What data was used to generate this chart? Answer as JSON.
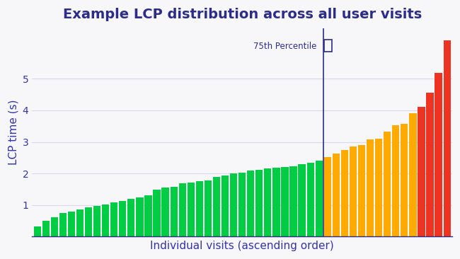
{
  "title": "Example LCP distribution across all user visits",
  "xlabel": "Individual visits (ascending order)",
  "ylabel": "LCP time (s)",
  "title_color": "#2c2c8a",
  "axis_label_color": "#3333aa",
  "text_color": "#2c2c8a",
  "background_color": "#f7f7fa",
  "bar_values": [
    0.32,
    0.5,
    0.62,
    0.75,
    0.8,
    0.85,
    0.92,
    0.98,
    1.02,
    1.08,
    1.12,
    1.2,
    1.25,
    1.3,
    1.48,
    1.55,
    1.58,
    1.68,
    1.72,
    1.75,
    1.78,
    1.88,
    1.93,
    2.0,
    2.02,
    2.1,
    2.12,
    2.15,
    2.18,
    2.2,
    2.22,
    2.3,
    2.35,
    2.4,
    2.52,
    2.62,
    2.75,
    2.85,
    2.9,
    3.08,
    3.1,
    3.32,
    3.52,
    3.58,
    3.92,
    4.1,
    4.55,
    5.18,
    6.22
  ],
  "good_threshold": 2.5,
  "needs_improvement_threshold": 4.0,
  "color_good": "#00cc44",
  "color_needs_improvement": "#ffaa00",
  "color_poor": "#ee3322",
  "percentile_75_bar_index": 33,
  "percentile_label": "75th Percentile",
  "percentile_line_color": "#2c2c8a",
  "ylim": [
    0,
    6.6
  ],
  "yticks": [
    1,
    2,
    3,
    4,
    5
  ],
  "grid_color": "#d8d8e8",
  "title_fontsize": 14,
  "axis_label_fontsize": 11
}
